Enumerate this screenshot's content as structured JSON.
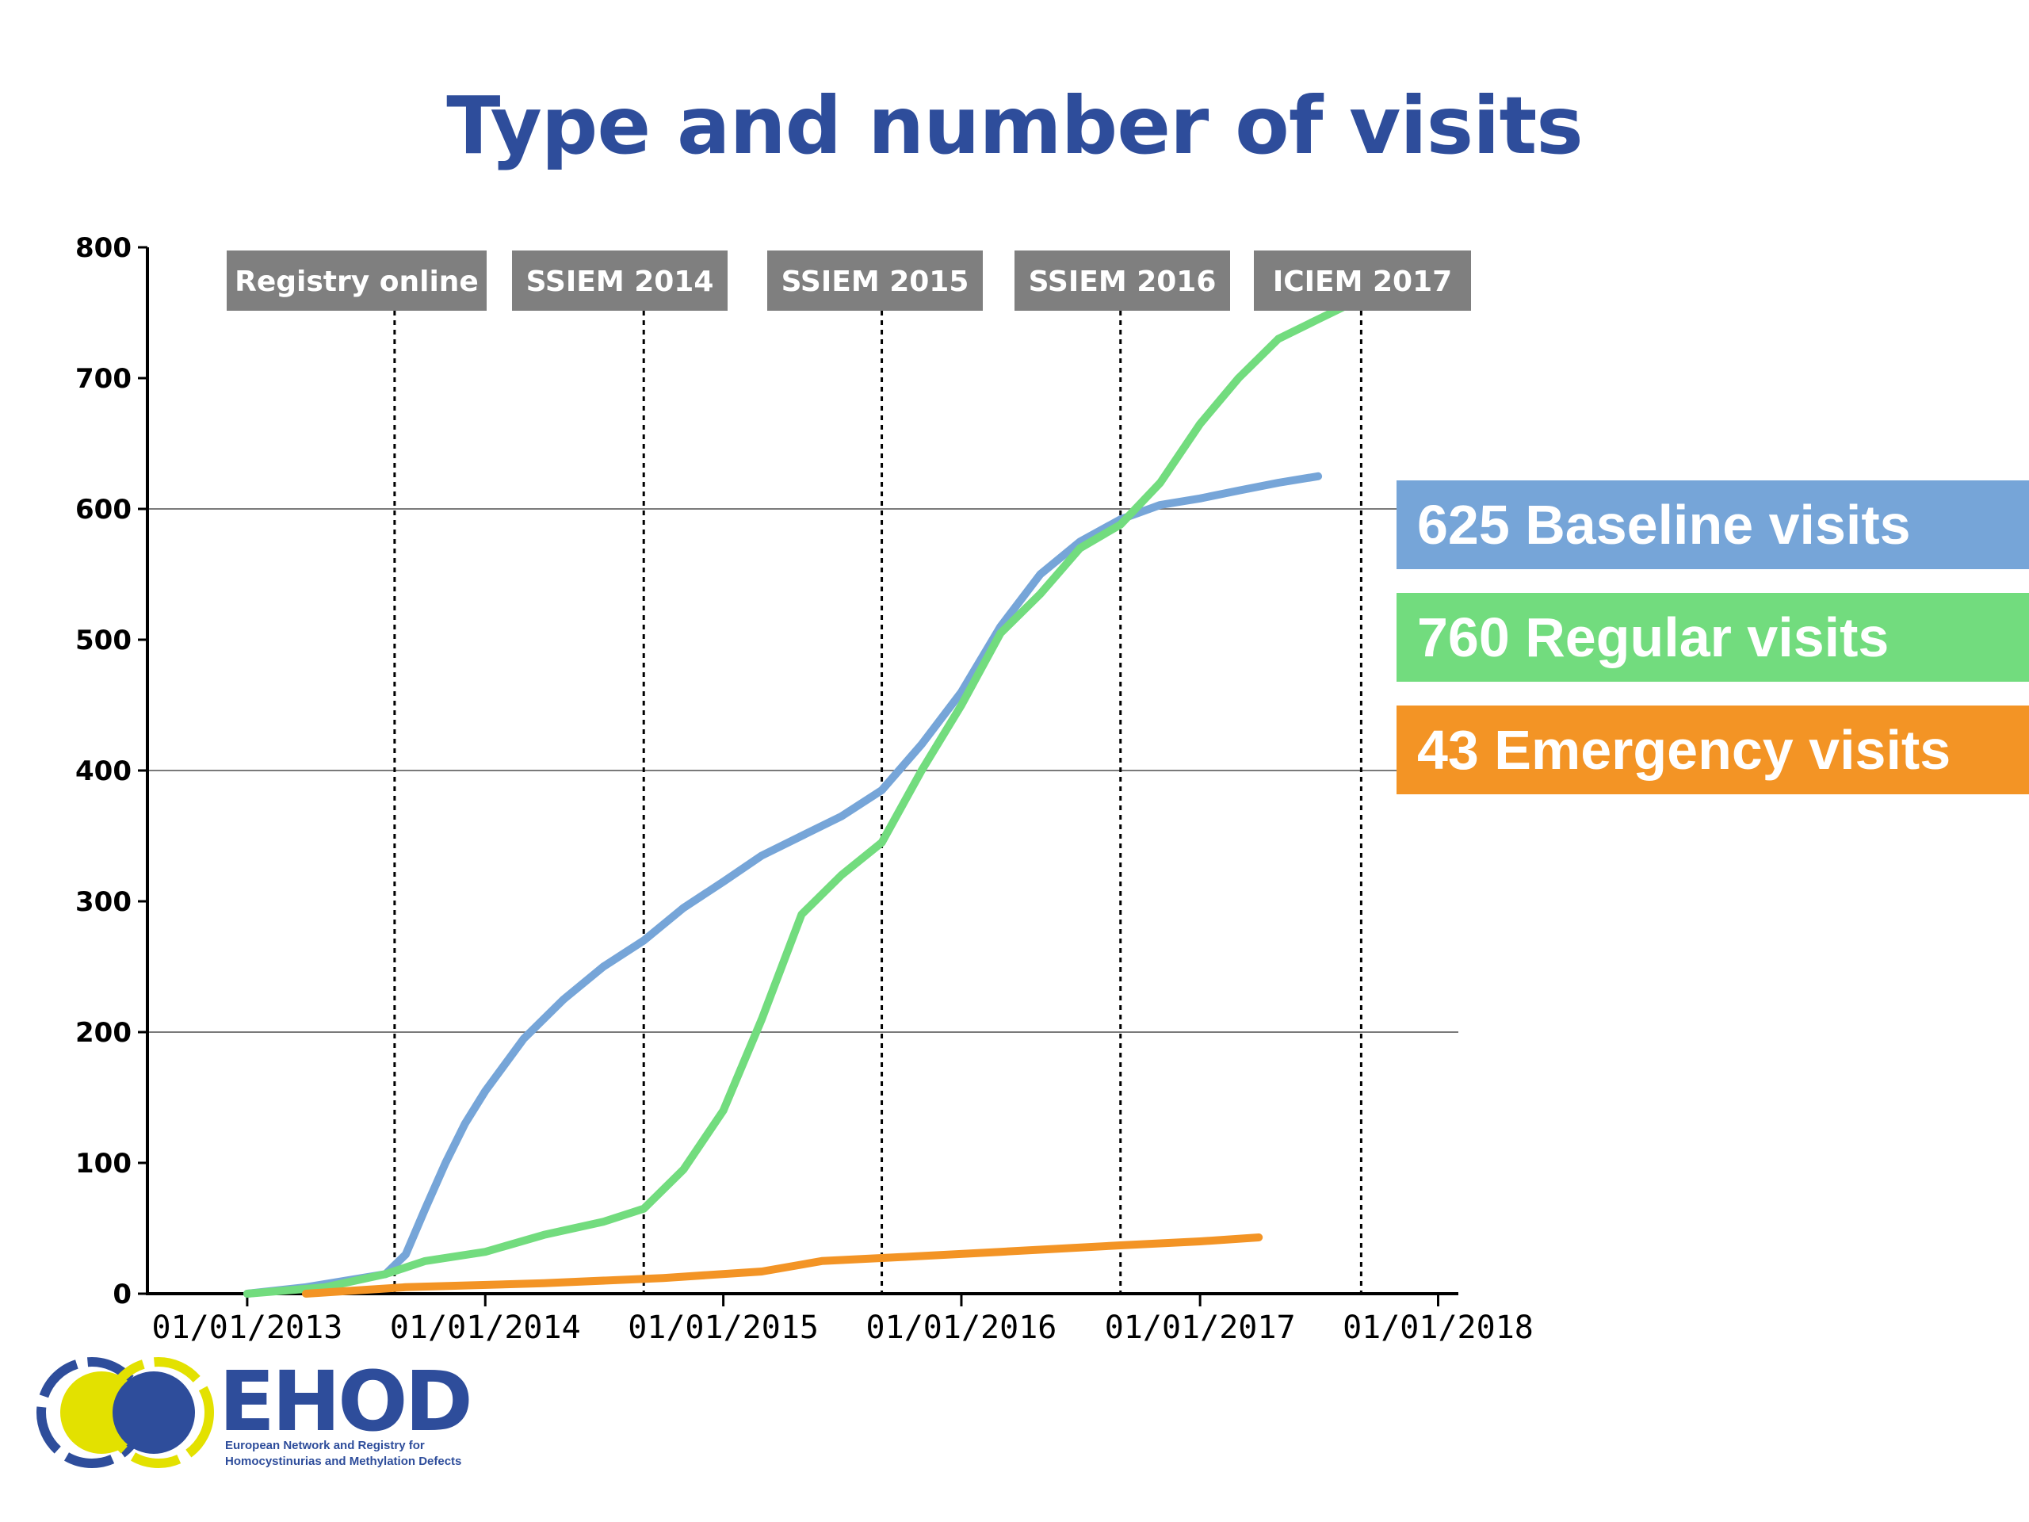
{
  "title": "Type and number of visits",
  "chart_data": {
    "type": "line",
    "title": "Type and number of visits",
    "xlabel": "",
    "ylabel": "",
    "x_type": "date",
    "xlim": [
      "2012-08-01",
      "2018-02-01"
    ],
    "ylim": [
      0,
      800
    ],
    "yticks": [
      0,
      100,
      200,
      300,
      400,
      500,
      600,
      700,
      800
    ],
    "xticks": [
      "2013-01-01",
      "2014-01-01",
      "2015-01-01",
      "2016-01-01",
      "2017-01-01",
      "2018-01-01"
    ],
    "xtick_labels": [
      "01/01/2013",
      "01/01/2014",
      "01/01/2015",
      "01/01/2016",
      "01/01/2017",
      "01/01/2018"
    ],
    "gridlines_y": [
      200,
      400,
      600
    ],
    "grid": "partial horizontal",
    "events": [
      {
        "label": "Registry online",
        "date": "2013-08-15"
      },
      {
        "label": "SSIEM 2014",
        "date": "2014-09-01"
      },
      {
        "label": "SSIEM 2015",
        "date": "2015-09-01"
      },
      {
        "label": "SSIEM 2016",
        "date": "2016-09-01"
      },
      {
        "label": "ICIEM 2017",
        "date": "2017-09-05"
      }
    ],
    "series": [
      {
        "name": "Baseline visits",
        "color": "#76a5d8",
        "points": [
          [
            "2013-01-01",
            0
          ],
          [
            "2013-04-01",
            5
          ],
          [
            "2013-06-01",
            10
          ],
          [
            "2013-08-01",
            15
          ],
          [
            "2013-09-01",
            30
          ],
          [
            "2013-10-01",
            65
          ],
          [
            "2013-11-01",
            100
          ],
          [
            "2013-12-01",
            130
          ],
          [
            "2014-01-01",
            155
          ],
          [
            "2014-03-01",
            195
          ],
          [
            "2014-05-01",
            225
          ],
          [
            "2014-07-01",
            250
          ],
          [
            "2014-09-01",
            270
          ],
          [
            "2014-11-01",
            295
          ],
          [
            "2015-01-01",
            315
          ],
          [
            "2015-03-01",
            335
          ],
          [
            "2015-05-01",
            350
          ],
          [
            "2015-07-01",
            365
          ],
          [
            "2015-09-01",
            385
          ],
          [
            "2015-11-01",
            420
          ],
          [
            "2016-01-01",
            460
          ],
          [
            "2016-03-01",
            510
          ],
          [
            "2016-05-01",
            550
          ],
          [
            "2016-07-01",
            575
          ],
          [
            "2016-09-01",
            592
          ],
          [
            "2016-11-01",
            603
          ],
          [
            "2017-01-01",
            608
          ],
          [
            "2017-03-01",
            614
          ],
          [
            "2017-05-01",
            620
          ],
          [
            "2017-07-01",
            625
          ]
        ]
      },
      {
        "name": "Regular visits",
        "color": "#72dc7e",
        "points": [
          [
            "2013-01-01",
            0
          ],
          [
            "2013-05-01",
            5
          ],
          [
            "2013-08-01",
            15
          ],
          [
            "2013-10-01",
            25
          ],
          [
            "2014-01-01",
            32
          ],
          [
            "2014-04-01",
            45
          ],
          [
            "2014-07-01",
            55
          ],
          [
            "2014-09-01",
            65
          ],
          [
            "2014-11-01",
            95
          ],
          [
            "2015-01-01",
            140
          ],
          [
            "2015-03-01",
            210
          ],
          [
            "2015-05-01",
            290
          ],
          [
            "2015-07-01",
            320
          ],
          [
            "2015-09-01",
            345
          ],
          [
            "2015-11-01",
            400
          ],
          [
            "2016-01-01",
            450
          ],
          [
            "2016-03-01",
            505
          ],
          [
            "2016-05-01",
            535
          ],
          [
            "2016-07-01",
            570
          ],
          [
            "2016-09-01",
            588
          ],
          [
            "2016-11-01",
            620
          ],
          [
            "2017-01-01",
            665
          ],
          [
            "2017-03-01",
            700
          ],
          [
            "2017-05-01",
            730
          ],
          [
            "2017-07-01",
            745
          ],
          [
            "2017-09-01",
            760
          ]
        ]
      },
      {
        "name": "Emergency visits",
        "color": "#f39425",
        "points": [
          [
            "2013-04-01",
            0
          ],
          [
            "2013-09-01",
            5
          ],
          [
            "2014-04-01",
            8
          ],
          [
            "2014-10-01",
            12
          ],
          [
            "2015-03-01",
            17
          ],
          [
            "2015-06-01",
            25
          ],
          [
            "2015-10-01",
            28
          ],
          [
            "2016-03-01",
            32
          ],
          [
            "2016-09-01",
            37
          ],
          [
            "2017-01-01",
            40
          ],
          [
            "2017-04-01",
            43
          ]
        ]
      }
    ]
  },
  "legend": [
    {
      "text": "625 Baseline visits",
      "color": "#76a5d8"
    },
    {
      "text": "760 Regular visits",
      "color": "#72dc7e"
    },
    {
      "text": "43 Emergency visits",
      "color": "#f39425"
    }
  ],
  "logo": {
    "name": "EHOD",
    "line1": "European Network and Registry for",
    "line2": "Homocystinurias and Methylation Defects",
    "colors": {
      "blue": "#2e4d9b",
      "yellow": "#e3e100"
    }
  }
}
